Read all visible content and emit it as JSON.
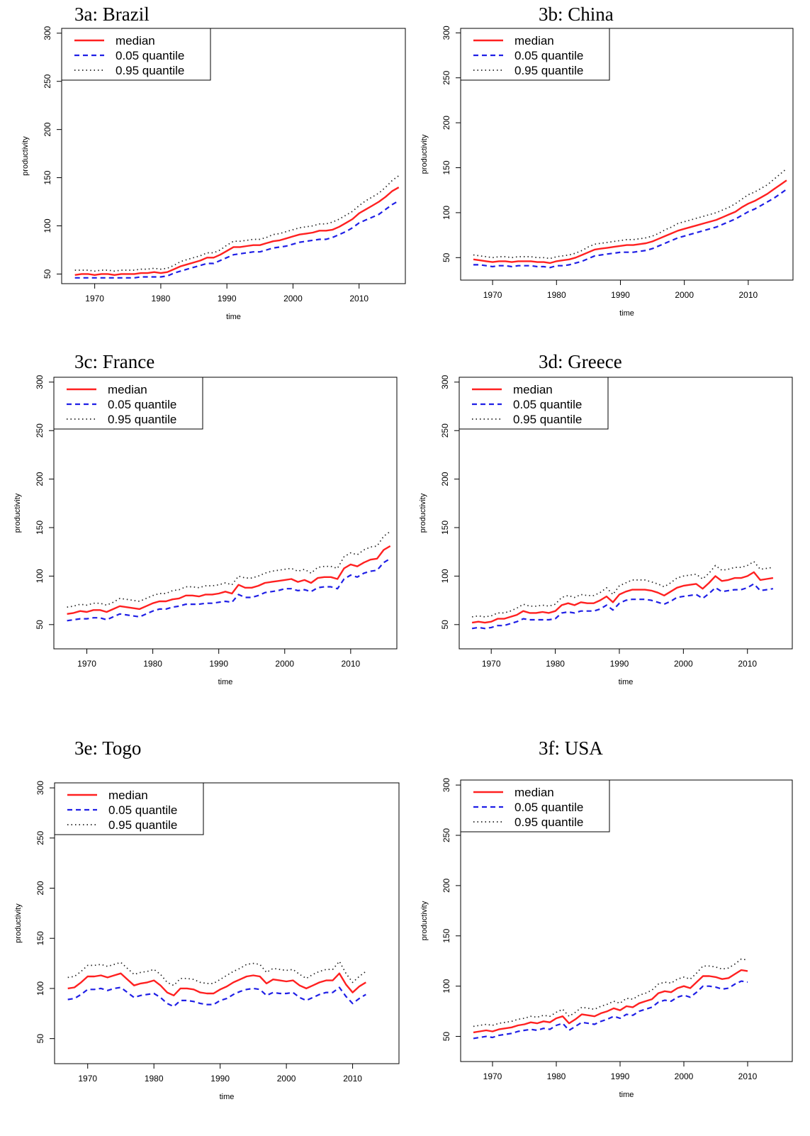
{
  "legend_labels": [
    "median",
    "0.05 quantile",
    "0.95 quantile"
  ],
  "colors": {
    "median": "#ff2020",
    "q05": "#1f1fe6",
    "q95": "#202020"
  },
  "chart_data": [
    {
      "type": "line",
      "title": "3a: Brazil",
      "xlabel": "time",
      "ylabel": "productivity",
      "xlim": [
        1965,
        2017
      ],
      "ylim": [
        40,
        305
      ],
      "xticks": [
        1970,
        1980,
        1990,
        2000,
        2010
      ],
      "yticks": [
        50,
        100,
        150,
        200,
        250,
        300
      ],
      "legend": "top-left",
      "x_start": 1967,
      "x_step": 1,
      "series": [
        {
          "name": "median",
          "values": [
            49,
            50,
            50,
            49,
            50,
            50,
            49,
            50,
            50,
            50,
            51,
            51,
            52,
            51,
            52,
            55,
            58,
            60,
            62,
            64,
            67,
            67,
            70,
            74,
            78,
            78,
            79,
            80,
            80,
            82,
            84,
            85,
            87,
            89,
            91,
            92,
            93,
            95,
            95,
            96,
            99,
            103,
            107,
            113,
            117,
            121,
            125,
            130,
            136,
            140
          ]
        },
        {
          "name": "0.05 quantile",
          "values": [
            46,
            46,
            46,
            46,
            46,
            46,
            46,
            46,
            46,
            46,
            47,
            47,
            47,
            47,
            48,
            51,
            53,
            55,
            57,
            59,
            61,
            61,
            64,
            67,
            70,
            71,
            72,
            73,
            73,
            75,
            77,
            78,
            79,
            81,
            83,
            84,
            85,
            86,
            86,
            88,
            91,
            94,
            98,
            103,
            106,
            109,
            112,
            117,
            122,
            126
          ]
        },
        {
          "name": "0.95 quantile",
          "values": [
            54,
            54,
            54,
            53,
            54,
            54,
            53,
            54,
            54,
            54,
            55,
            55,
            56,
            55,
            56,
            59,
            63,
            65,
            67,
            69,
            72,
            72,
            75,
            80,
            84,
            84,
            85,
            86,
            86,
            88,
            91,
            92,
            94,
            96,
            98,
            99,
            100,
            102,
            102,
            104,
            107,
            111,
            115,
            121,
            126,
            130,
            134,
            140,
            147,
            152
          ]
        }
      ]
    },
    {
      "type": "line",
      "title": "3b: China",
      "xlabel": "time",
      "ylabel": "productivity",
      "xlim": [
        1965,
        2017
      ],
      "ylim": [
        25,
        305
      ],
      "xticks": [
        1970,
        1980,
        1990,
        2000,
        2010
      ],
      "yticks": [
        50,
        100,
        150,
        200,
        250,
        300
      ],
      "legend": "top-left",
      "x_start": 1967,
      "x_step": 1,
      "series": [
        {
          "name": "median",
          "values": [
            48,
            47,
            46,
            45,
            46,
            46,
            45,
            46,
            46,
            46,
            45,
            45,
            44,
            46,
            47,
            48,
            50,
            53,
            56,
            59,
            60,
            61,
            62,
            63,
            64,
            64,
            65,
            66,
            68,
            71,
            74,
            77,
            80,
            82,
            84,
            86,
            88,
            90,
            92,
            95,
            98,
            101,
            106,
            110,
            113,
            117,
            121,
            126,
            131,
            136
          ]
        },
        {
          "name": "0.05 quantile",
          "values": [
            42,
            42,
            41,
            40,
            41,
            41,
            40,
            41,
            41,
            41,
            40,
            40,
            39,
            41,
            41,
            42,
            44,
            46,
            49,
            52,
            53,
            54,
            55,
            56,
            56,
            56,
            57,
            58,
            60,
            63,
            66,
            69,
            72,
            74,
            76,
            78,
            80,
            82,
            84,
            87,
            90,
            93,
            97,
            101,
            104,
            108,
            112,
            116,
            121,
            126
          ]
        },
        {
          "name": "0.95 quantile",
          "values": [
            53,
            52,
            51,
            50,
            51,
            51,
            50,
            51,
            51,
            51,
            50,
            50,
            49,
            51,
            52,
            53,
            55,
            58,
            62,
            65,
            66,
            67,
            68,
            69,
            70,
            70,
            71,
            72,
            74,
            77,
            81,
            84,
            88,
            90,
            92,
            94,
            96,
            98,
            100,
            103,
            106,
            110,
            115,
            120,
            123,
            127,
            131,
            137,
            143,
            149
          ]
        }
      ]
    },
    {
      "type": "line",
      "title": "3c: France",
      "xlabel": "time",
      "ylabel": "productivity",
      "xlim": [
        1965,
        2017
      ],
      "ylim": [
        25,
        305
      ],
      "xticks": [
        1970,
        1980,
        1990,
        2000,
        2010
      ],
      "yticks": [
        50,
        100,
        150,
        200,
        250,
        300
      ],
      "legend": "top-left",
      "x_start": 1967,
      "x_step": 1,
      "series": [
        {
          "name": "median",
          "values": [
            61,
            62,
            64,
            63,
            65,
            65,
            63,
            66,
            69,
            68,
            67,
            66,
            69,
            72,
            74,
            74,
            76,
            77,
            80,
            80,
            79,
            81,
            81,
            82,
            84,
            82,
            91,
            88,
            88,
            90,
            93,
            94,
            95,
            96,
            97,
            94,
            96,
            93,
            98,
            99,
            99,
            97,
            108,
            112,
            110,
            114,
            117,
            118,
            127,
            131
          ]
        },
        {
          "name": "0.05 quantile",
          "values": [
            54,
            55,
            56,
            56,
            57,
            57,
            55,
            58,
            61,
            60,
            59,
            58,
            61,
            64,
            66,
            66,
            68,
            69,
            71,
            71,
            71,
            72,
            72,
            73,
            74,
            73,
            81,
            78,
            78,
            80,
            83,
            84,
            85,
            87,
            87,
            85,
            86,
            84,
            88,
            89,
            89,
            87,
            97,
            101,
            99,
            103,
            105,
            106,
            114,
            118
          ]
        },
        {
          "name": "0.95 quantile",
          "values": [
            68,
            69,
            71,
            70,
            72,
            72,
            70,
            73,
            77,
            76,
            75,
            74,
            77,
            80,
            82,
            82,
            85,
            86,
            89,
            89,
            88,
            90,
            90,
            91,
            93,
            91,
            100,
            98,
            98,
            100,
            103,
            105,
            106,
            107,
            108,
            105,
            107,
            103,
            109,
            110,
            110,
            108,
            120,
            124,
            122,
            127,
            130,
            131,
            141,
            146
          ]
        }
      ]
    },
    {
      "type": "line",
      "title": "3d: Greece",
      "xlabel": "time",
      "ylabel": "productivity",
      "xlim": [
        1965,
        2017
      ],
      "ylim": [
        25,
        305
      ],
      "xticks": [
        1970,
        1980,
        1990,
        2000,
        2010
      ],
      "yticks": [
        50,
        100,
        150,
        200,
        250,
        300
      ],
      "legend": "top-left",
      "x_start": 1967,
      "x_step": 1,
      "series": [
        {
          "name": "median",
          "values": [
            52,
            53,
            52,
            53,
            56,
            56,
            58,
            60,
            64,
            62,
            62,
            63,
            62,
            64,
            70,
            72,
            70,
            73,
            72,
            72,
            75,
            79,
            73,
            81,
            84,
            86,
            86,
            86,
            85,
            83,
            80,
            84,
            88,
            90,
            91,
            92,
            87,
            93,
            100,
            95,
            96,
            98,
            98,
            100,
            104,
            96,
            97,
            98
          ]
        },
        {
          "name": "0.05 quantile",
          "values": [
            46,
            47,
            46,
            47,
            49,
            49,
            51,
            53,
            56,
            55,
            55,
            55,
            55,
            56,
            62,
            63,
            62,
            64,
            64,
            64,
            66,
            70,
            65,
            72,
            75,
            76,
            76,
            76,
            75,
            73,
            71,
            74,
            78,
            79,
            80,
            81,
            77,
            82,
            88,
            84,
            85,
            86,
            86,
            88,
            92,
            85,
            86,
            87
          ]
        },
        {
          "name": "0.95 quantile",
          "values": [
            58,
            59,
            58,
            59,
            62,
            62,
            64,
            67,
            71,
            69,
            69,
            70,
            69,
            71,
            78,
            80,
            78,
            81,
            80,
            80,
            83,
            88,
            81,
            90,
            93,
            96,
            96,
            96,
            94,
            92,
            89,
            93,
            98,
            100,
            101,
            102,
            97,
            103,
            111,
            106,
            107,
            109,
            109,
            111,
            115,
            107,
            108,
            109
          ]
        }
      ]
    },
    {
      "type": "line",
      "title": "3e: Togo",
      "xlabel": "time",
      "ylabel": "productivity",
      "xlim": [
        1965,
        2017
      ],
      "ylim": [
        25,
        305
      ],
      "xticks": [
        1970,
        1980,
        1990,
        2000,
        2010
      ],
      "yticks": [
        50,
        100,
        150,
        200,
        250,
        300
      ],
      "legend": "top-left",
      "x_start": 1967,
      "x_step": 1,
      "series": [
        {
          "name": "median",
          "values": [
            100,
            101,
            106,
            112,
            112,
            113,
            111,
            113,
            115,
            109,
            103,
            105,
            106,
            108,
            103,
            96,
            93,
            100,
            100,
            99,
            96,
            95,
            95,
            99,
            102,
            106,
            109,
            112,
            113,
            112,
            105,
            109,
            108,
            107,
            108,
            103,
            100,
            103,
            106,
            108,
            108,
            115,
            104,
            96,
            102,
            106
          ]
        },
        {
          "name": "0.05 quantile",
          "values": [
            89,
            90,
            94,
            99,
            99,
            100,
            98,
            100,
            101,
            96,
            91,
            93,
            94,
            95,
            91,
            85,
            82,
            88,
            88,
            87,
            85,
            84,
            84,
            88,
            90,
            94,
            97,
            99,
            100,
            99,
            93,
            96,
            95,
            95,
            96,
            91,
            88,
            91,
            94,
            96,
            96,
            101,
            92,
            85,
            90,
            94
          ]
        },
        {
          "name": "0.95 quantile",
          "values": [
            111,
            112,
            117,
            123,
            123,
            124,
            122,
            124,
            126,
            120,
            114,
            116,
            117,
            119,
            114,
            106,
            103,
            110,
            110,
            109,
            106,
            105,
            105,
            109,
            113,
            117,
            120,
            124,
            125,
            124,
            116,
            120,
            119,
            118,
            119,
            114,
            110,
            114,
            117,
            119,
            119,
            127,
            115,
            106,
            112,
            117
          ]
        }
      ]
    },
    {
      "type": "line",
      "title": "3f: USA",
      "xlabel": "time",
      "ylabel": "productivity",
      "xlim": [
        1965,
        2017
      ],
      "ylim": [
        25,
        305
      ],
      "xticks": [
        1970,
        1980,
        1990,
        2000,
        2010
      ],
      "yticks": [
        50,
        100,
        150,
        200,
        250,
        300
      ],
      "legend": "top-left",
      "x_start": 1967,
      "x_step": 1,
      "series": [
        {
          "name": "median",
          "values": [
            54,
            55,
            56,
            55,
            57,
            58,
            59,
            61,
            62,
            64,
            63,
            65,
            64,
            68,
            70,
            63,
            67,
            72,
            71,
            70,
            73,
            75,
            78,
            76,
            80,
            79,
            83,
            85,
            87,
            93,
            95,
            94,
            98,
            100,
            98,
            104,
            110,
            110,
            109,
            107,
            108,
            112,
            116,
            115
          ]
        },
        {
          "name": "0.05 quantile",
          "values": [
            48,
            49,
            50,
            49,
            51,
            52,
            53,
            55,
            56,
            57,
            56,
            58,
            57,
            61,
            63,
            56,
            60,
            64,
            63,
            62,
            65,
            67,
            70,
            68,
            72,
            71,
            75,
            77,
            79,
            84,
            86,
            85,
            89,
            91,
            89,
            94,
            100,
            100,
            99,
            97,
            98,
            102,
            105,
            104
          ]
        },
        {
          "name": "0.95 quantile",
          "values": [
            60,
            61,
            62,
            61,
            63,
            64,
            65,
            67,
            68,
            70,
            69,
            71,
            70,
            74,
            77,
            70,
            74,
            79,
            78,
            77,
            80,
            82,
            85,
            83,
            88,
            87,
            91,
            93,
            96,
            102,
            104,
            103,
            107,
            109,
            107,
            113,
            120,
            120,
            119,
            117,
            118,
            122,
            127,
            126
          ]
        }
      ]
    }
  ]
}
